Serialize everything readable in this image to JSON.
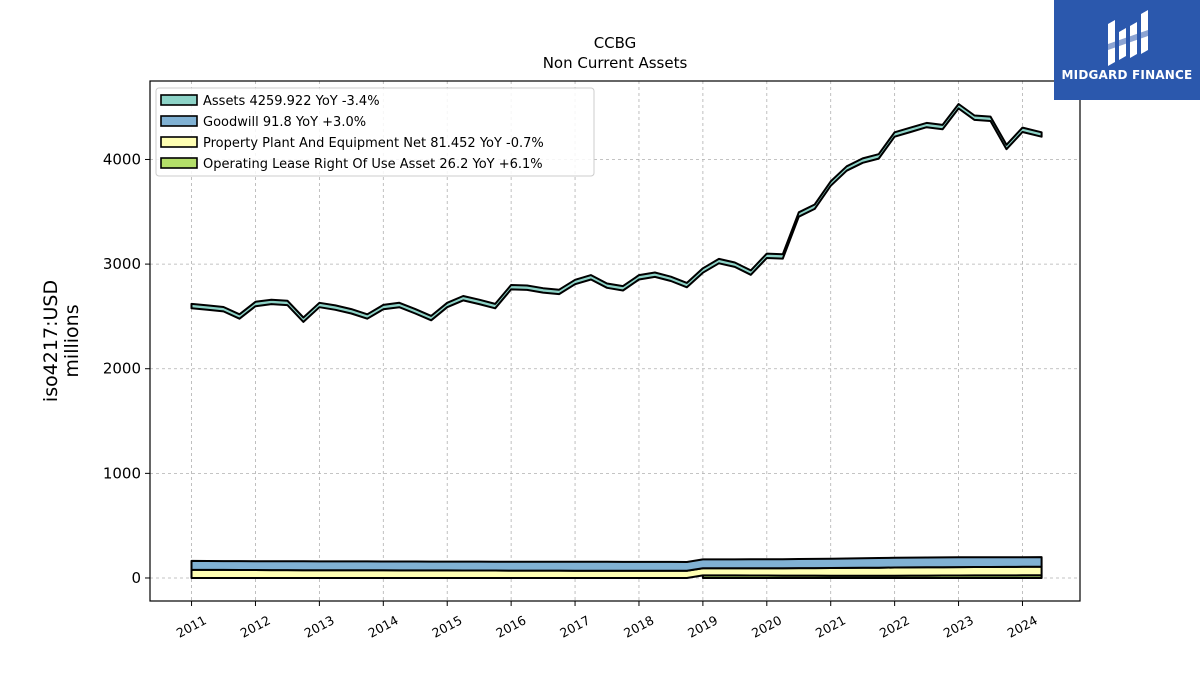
{
  "brand": {
    "name": "MIDGARD FINANCE",
    "color": "#2b58ad",
    "icon": "midgard-logo-icon"
  },
  "chart_data": {
    "type": "area",
    "title": "CCBG",
    "subtitle": "Non Current  Assets",
    "ylabel_line1": "iso4217:USD",
    "ylabel_line2": "millions",
    "xlabel": "",
    "ylim": [
      -220,
      4750
    ],
    "xlim": [
      2010.35,
      2024.9
    ],
    "y_ticks": [
      0,
      1000,
      2000,
      3000,
      4000
    ],
    "x_ticks": [
      2011,
      2012,
      2013,
      2014,
      2015,
      2016,
      2017,
      2018,
      2019,
      2020,
      2021,
      2022,
      2023,
      2024
    ],
    "grid": true,
    "legend_position": "top-left",
    "series": [
      {
        "name": "Assets  4259.922 YoY -3.4%",
        "color": "#8dd3c7",
        "x": [
          2011.0,
          2011.25,
          2011.5,
          2011.75,
          2012.0,
          2012.25,
          2012.5,
          2012.75,
          2013.0,
          2013.25,
          2013.5,
          2013.75,
          2014.0,
          2014.25,
          2014.5,
          2014.75,
          2015.0,
          2015.25,
          2015.5,
          2015.75,
          2016.0,
          2016.25,
          2016.5,
          2016.75,
          2017.0,
          2017.25,
          2017.5,
          2017.75,
          2018.0,
          2018.25,
          2018.5,
          2018.75,
          2019.0,
          2019.25,
          2019.5,
          2019.75,
          2020.0,
          2020.25,
          2020.5,
          2020.75,
          2021.0,
          2021.25,
          2021.5,
          2021.75,
          2022.0,
          2022.25,
          2022.5,
          2022.75,
          2023.0,
          2023.25,
          2023.5,
          2023.75,
          2024.0,
          2024.3
        ],
        "values": [
          2620,
          2605,
          2590,
          2520,
          2640,
          2660,
          2650,
          2490,
          2630,
          2605,
          2570,
          2520,
          2610,
          2630,
          2570,
          2505,
          2630,
          2695,
          2660,
          2620,
          2800,
          2795,
          2770,
          2755,
          2850,
          2895,
          2815,
          2790,
          2895,
          2920,
          2880,
          2820,
          2960,
          3050,
          3015,
          2940,
          3100,
          3095,
          3495,
          3570,
          3790,
          3935,
          4010,
          4050,
          4260,
          4305,
          4350,
          4330,
          4530,
          4420,
          4410,
          4140,
          4305,
          4260
        ]
      },
      {
        "name": "Goodwill  91.8 YoY +3.0%",
        "color": "#80b1d3",
        "x": [
          2011.0,
          2012.0,
          2013.0,
          2014.0,
          2015.0,
          2016.0,
          2017.0,
          2018.0,
          2019.0,
          2020.0,
          2021.0,
          2022.0,
          2023.0,
          2024.3
        ],
        "values": [
          84.8,
          84.8,
          84.8,
          84.8,
          84.8,
          84.8,
          84.8,
          84.8,
          84.8,
          84.8,
          89.1,
          93.3,
          93.3,
          91.8
        ]
      },
      {
        "name": "Property Plant And Equipment Net  81.452 YoY -0.7%",
        "color": "#ffffb3",
        "x": [
          2011.0,
          2012.0,
          2013.0,
          2014.0,
          2015.0,
          2016.0,
          2017.0,
          2018.0,
          2019.0,
          2020.0,
          2021.0,
          2022.0,
          2023.0,
          2024.3
        ],
        "values": [
          78,
          76,
          74,
          73,
          72,
          71,
          70,
          69,
          68,
          70,
          73,
          78,
          80,
          81.452
        ]
      },
      {
        "name": "Operating Lease Right Of Use Asset  26.2 YoY +6.1%",
        "color": "#b3de69",
        "x": [
          2019.0,
          2019.5,
          2020.0,
          2020.5,
          2021.0,
          2021.5,
          2022.0,
          2022.5,
          2023.0,
          2023.5,
          2024.0,
          2024.3
        ],
        "values": [
          24.6,
          24.2,
          23.5,
          22.8,
          22.0,
          21.5,
          22.0,
          23.1,
          24.0,
          24.7,
          25.5,
          26.2
        ]
      }
    ]
  }
}
